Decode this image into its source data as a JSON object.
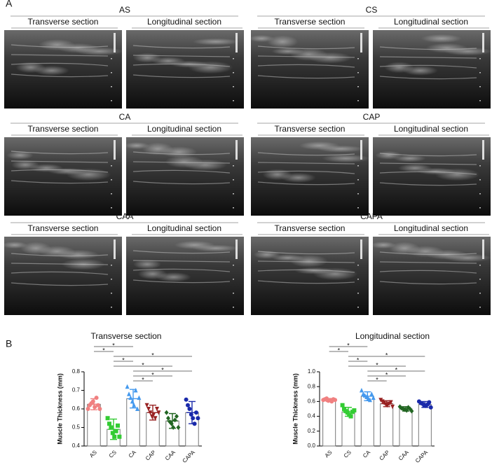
{
  "panel_a": {
    "label": "A",
    "groups": [
      {
        "name": "AS",
        "sections": [
          "Transverse section",
          "Longitudinal section"
        ]
      },
      {
        "name": "CS",
        "sections": [
          "Transverse section",
          "Longitudinal section"
        ]
      },
      {
        "name": "CA",
        "sections": [
          "Transverse section",
          "Longitudinal section"
        ]
      },
      {
        "name": "CAP",
        "sections": [
          "Transverse section",
          "Longitudinal section"
        ]
      },
      {
        "name": "CAA",
        "sections": [
          "Transverse section",
          "Longitudinal section"
        ]
      },
      {
        "name": "CAPA",
        "sections": [
          "Transverse section",
          "Longitudinal section"
        ]
      }
    ]
  },
  "panel_b": {
    "label": "B"
  },
  "chart_data": [
    {
      "type": "bar",
      "title": "Transverse section",
      "y_label": "Muscle Thickness (mm)",
      "categories": [
        "AS",
        "CS",
        "CA",
        "CAP",
        "CAA",
        "CAPA"
      ],
      "colors": [
        "#f08080",
        "#33cc33",
        "#4499ee",
        "#992222",
        "#226622",
        "#1a2aaa"
      ],
      "markers": [
        "circle",
        "square",
        "triangle-up",
        "triangle-down",
        "diamond",
        "circle"
      ],
      "values": [
        0.625,
        0.49,
        0.655,
        0.58,
        0.535,
        0.58
      ],
      "errors": [
        0.03,
        0.055,
        0.05,
        0.04,
        0.04,
        0.06
      ],
      "points": [
        [
          0.6,
          0.62,
          0.63,
          0.64,
          0.61,
          0.66,
          0.62,
          0.6
        ],
        [
          0.55,
          0.52,
          0.5,
          0.47,
          0.45,
          0.48,
          0.51,
          0.45
        ],
        [
          0.72,
          0.68,
          0.66,
          0.64,
          0.62,
          0.7,
          0.6,
          0.66
        ],
        [
          0.62,
          0.6,
          0.58,
          0.56,
          0.57,
          0.55,
          0.6,
          0.58
        ],
        [
          0.58,
          0.55,
          0.53,
          0.52,
          0.5,
          0.54,
          0.56,
          0.5
        ],
        [
          0.65,
          0.62,
          0.6,
          0.57,
          0.55,
          0.52,
          0.58,
          0.55
        ]
      ],
      "ylim": [
        0.4,
        0.8
      ],
      "yticks": [
        0.4,
        0.5,
        0.6,
        0.7,
        0.8
      ],
      "significance": [
        {
          "pair": [
            0,
            2
          ],
          "label": "*"
        },
        {
          "pair": [
            0,
            1
          ],
          "label": "*"
        },
        {
          "pair": [
            1,
            5
          ],
          "label": "*"
        },
        {
          "pair": [
            1,
            2
          ],
          "label": "*"
        },
        {
          "pair": [
            1,
            4
          ],
          "label": "*"
        },
        {
          "pair": [
            2,
            5
          ],
          "label": "*"
        },
        {
          "pair": [
            2,
            4
          ],
          "label": "*"
        },
        {
          "pair": [
            2,
            3
          ],
          "label": "*"
        }
      ]
    },
    {
      "type": "bar",
      "title": "Longitudinal section",
      "y_label": "Muscle Thickness (mm)",
      "categories": [
        "AS",
        "CS",
        "CA",
        "CAP",
        "CAA",
        "CAPA"
      ],
      "colors": [
        "#f08080",
        "#33cc33",
        "#4499ee",
        "#992222",
        "#226622",
        "#1a2aaa"
      ],
      "markers": [
        "circle",
        "square",
        "triangle-up",
        "triangle-down",
        "diamond",
        "circle"
      ],
      "values": [
        0.62,
        0.46,
        0.67,
        0.57,
        0.5,
        0.56
      ],
      "errors": [
        0.02,
        0.06,
        0.06,
        0.04,
        0.03,
        0.04
      ],
      "points": [
        [
          0.62,
          0.63,
          0.64,
          0.61,
          0.62,
          0.6,
          0.63,
          0.62
        ],
        [
          0.55,
          0.5,
          0.47,
          0.45,
          0.42,
          0.4,
          0.46,
          0.48
        ],
        [
          0.75,
          0.7,
          0.68,
          0.66,
          0.64,
          0.62,
          0.7,
          0.65
        ],
        [
          0.62,
          0.6,
          0.58,
          0.56,
          0.55,
          0.57,
          0.59,
          0.53
        ],
        [
          0.53,
          0.51,
          0.5,
          0.49,
          0.48,
          0.52,
          0.5,
          0.47
        ],
        [
          0.6,
          0.58,
          0.57,
          0.55,
          0.54,
          0.56,
          0.59,
          0.52
        ]
      ],
      "ylim": [
        0,
        1.0
      ],
      "yticks": [
        {
          "value": 0,
          "label": "0.0"
        },
        0.2,
        0.4,
        0.6,
        0.8,
        {
          "value": 1.0,
          "label": "1.0"
        }
      ],
      "significance": [
        {
          "pair": [
            0,
            2
          ],
          "label": "*"
        },
        {
          "pair": [
            0,
            1
          ],
          "label": "*"
        },
        {
          "pair": [
            1,
            5
          ],
          "label": "*"
        },
        {
          "pair": [
            1,
            2
          ],
          "label": "*"
        },
        {
          "pair": [
            1,
            4
          ],
          "label": "*"
        },
        {
          "pair": [
            2,
            5
          ],
          "label": "*"
        },
        {
          "pair": [
            2,
            4
          ],
          "label": "*"
        },
        {
          "pair": [
            2,
            3
          ],
          "label": "*"
        }
      ]
    }
  ]
}
